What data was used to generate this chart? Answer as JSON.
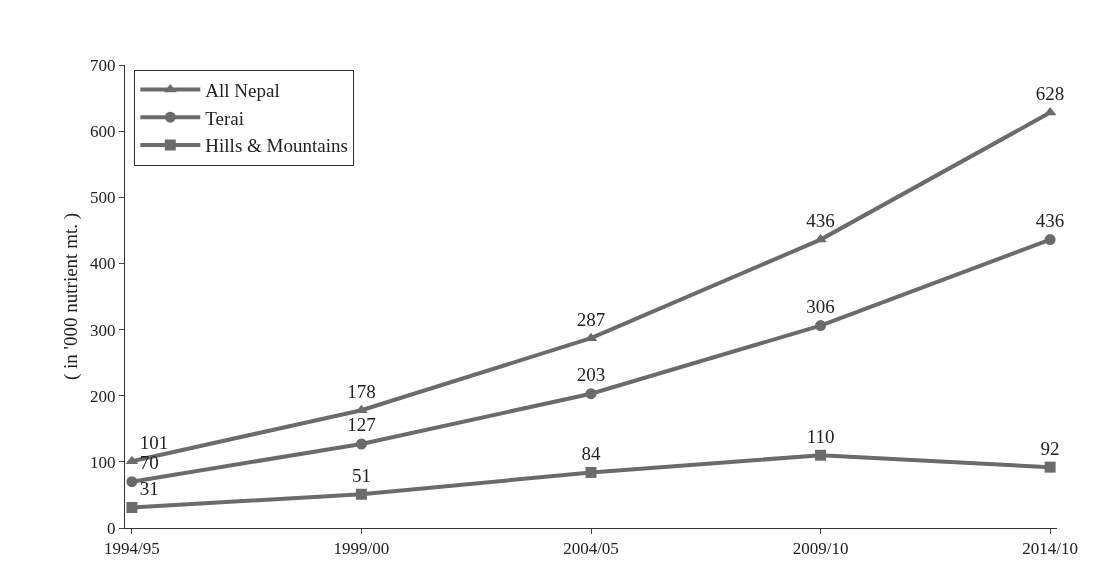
{
  "chart_data": {
    "type": "line",
    "ylabel": "( in '000 nutrient mt. )",
    "categories": [
      "1994/95",
      "1999/00",
      "2004/05",
      "2009/10",
      "2014/10"
    ],
    "series": [
      {
        "name": "All Nepal",
        "color": "#6b6b6b",
        "marker": "triangle",
        "values": [
          101,
          178,
          287,
          436,
          628
        ]
      },
      {
        "name": "Terai",
        "color": "#6b6b6b",
        "marker": "circle",
        "values": [
          70,
          127,
          203,
          306,
          436
        ]
      },
      {
        "name": "Hills & Mountains",
        "color": "#6b6b6b",
        "marker": "square",
        "values": [
          31,
          51,
          84,
          110,
          92
        ]
      }
    ],
    "ylim": [
      0,
      700
    ],
    "yticks": [
      0,
      100,
      200,
      300,
      400,
      500,
      600,
      700
    ],
    "grid": false,
    "legend": "top left",
    "data_labels": true,
    "line_style": "solid"
  }
}
